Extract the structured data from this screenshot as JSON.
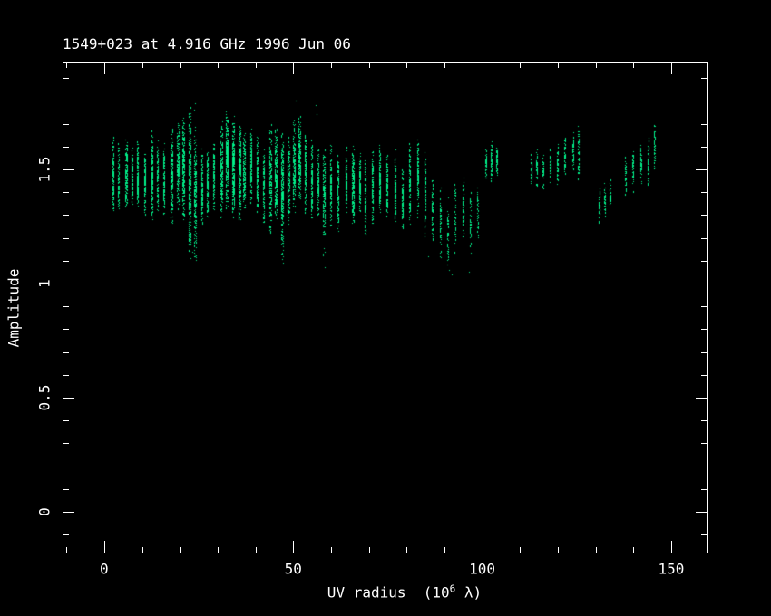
{
  "title": "1549+023 at 4.916 GHz 1996 Jun 06",
  "chart_data": {
    "type": "scatter",
    "title": "1549+023 at 4.916 GHz 1996 Jun 06",
    "xlabel_prefix": "UV radius  (10",
    "xlabel_sup": "6",
    "xlabel_suffix": " λ)",
    "ylabel": "Amplitude",
    "xlim": [
      -11.0,
      159.6
    ],
    "ylim": [
      -0.182,
      1.972
    ],
    "x_ticks_major": {
      "values": [
        0,
        50,
        100,
        150
      ],
      "labels": [
        "0",
        "50",
        "100",
        "150"
      ]
    },
    "x_minor_step": 10,
    "y_ticks_major": {
      "values": [
        0,
        0.5,
        1.0,
        1.5
      ],
      "labels": [
        "0",
        "0.5",
        "1",
        "1.5"
      ]
    },
    "y_minor_step": 0.1,
    "grid": false,
    "legend": false,
    "background": "#000000",
    "frame_color": "#ffffff",
    "point_color": "#00ee88",
    "series": [
      {
        "name": "visibility-amplitude",
        "streak_fields": [
          "uv_radius_1e6_lambda",
          "width",
          "amp_min",
          "amp_max",
          "n_points",
          "tail_amp_min_optional"
        ],
        "streaks": [
          [
            2.5,
            0.5,
            1.3,
            1.66,
            130
          ],
          [
            3.8,
            0.4,
            1.32,
            1.62,
            90
          ],
          [
            6.0,
            0.6,
            1.3,
            1.65,
            160
          ],
          [
            7.5,
            0.4,
            1.33,
            1.6,
            100
          ],
          [
            9.0,
            0.5,
            1.3,
            1.64,
            140
          ],
          [
            10.8,
            0.5,
            1.28,
            1.6,
            120
          ],
          [
            12.8,
            0.5,
            1.26,
            1.68,
            160
          ],
          [
            14.3,
            0.4,
            1.3,
            1.65,
            110
          ],
          [
            15.8,
            0.5,
            1.28,
            1.62,
            130
          ],
          [
            17.8,
            0.8,
            1.25,
            1.7,
            220
          ],
          [
            19.5,
            0.6,
            1.3,
            1.72,
            180
          ],
          [
            21.0,
            0.7,
            1.28,
            1.74,
            220
          ],
          [
            22.6,
            0.7,
            1.15,
            1.78,
            260,
            1.1
          ],
          [
            24.2,
            0.6,
            1.12,
            1.7,
            180,
            1.1
          ],
          [
            26.0,
            0.5,
            1.25,
            1.62,
            120
          ],
          [
            27.5,
            0.5,
            1.28,
            1.6,
            110
          ],
          [
            29.0,
            0.5,
            1.3,
            1.63,
            120
          ],
          [
            31.0,
            0.6,
            1.25,
            1.72,
            180
          ],
          [
            32.6,
            0.8,
            1.3,
            1.78,
            260
          ],
          [
            34.2,
            0.8,
            1.28,
            1.75,
            280
          ],
          [
            35.8,
            0.7,
            1.25,
            1.72,
            220
          ],
          [
            37.2,
            0.6,
            1.3,
            1.68,
            160
          ],
          [
            39.0,
            0.5,
            1.35,
            1.7,
            140
          ],
          [
            40.6,
            0.5,
            1.3,
            1.65,
            130
          ],
          [
            42.2,
            0.5,
            1.25,
            1.6,
            120
          ],
          [
            44.0,
            0.6,
            1.2,
            1.72,
            180
          ],
          [
            45.6,
            0.6,
            1.25,
            1.7,
            190
          ],
          [
            47.2,
            0.7,
            1.16,
            1.68,
            230,
            1.1
          ],
          [
            48.8,
            0.6,
            1.25,
            1.65,
            150
          ],
          [
            50.2,
            0.6,
            1.3,
            1.72,
            170
          ],
          [
            51.8,
            0.6,
            1.35,
            1.76,
            180
          ],
          [
            53.2,
            0.5,
            1.3,
            1.68,
            140
          ],
          [
            55.0,
            0.5,
            1.25,
            1.65,
            130
          ],
          [
            56.6,
            0.5,
            1.28,
            1.62,
            120
          ],
          [
            58.2,
            0.6,
            1.2,
            1.6,
            150,
            1.08
          ],
          [
            60.0,
            0.5,
            1.25,
            1.62,
            130
          ],
          [
            62.0,
            0.5,
            1.22,
            1.58,
            110
          ],
          [
            64.0,
            0.5,
            1.3,
            1.6,
            110
          ],
          [
            66.0,
            0.7,
            1.25,
            1.62,
            180
          ],
          [
            67.6,
            0.5,
            1.28,
            1.58,
            120
          ],
          [
            69.2,
            0.5,
            1.2,
            1.55,
            110
          ],
          [
            71.0,
            0.5,
            1.25,
            1.6,
            120
          ],
          [
            73.0,
            0.5,
            1.3,
            1.62,
            120
          ],
          [
            75.0,
            0.5,
            1.28,
            1.58,
            110
          ],
          [
            77.0,
            0.5,
            1.25,
            1.6,
            110
          ],
          [
            79.0,
            0.5,
            1.2,
            1.55,
            100
          ],
          [
            81.0,
            0.5,
            1.25,
            1.63,
            110
          ],
          [
            83.0,
            0.5,
            1.28,
            1.66,
            110
          ],
          [
            85.0,
            0.5,
            1.2,
            1.6,
            90
          ],
          [
            87.0,
            0.5,
            1.15,
            1.5,
            60
          ],
          [
            89.0,
            0.5,
            1.1,
            1.45,
            50
          ],
          [
            91.0,
            0.5,
            1.05,
            1.4,
            45
          ],
          [
            93.0,
            0.4,
            1.12,
            1.45,
            40
          ],
          [
            95.0,
            0.4,
            1.18,
            1.48,
            45
          ],
          [
            97.0,
            0.4,
            1.1,
            1.42,
            40
          ],
          [
            98.8,
            0.4,
            1.16,
            1.45,
            40
          ],
          [
            101.0,
            0.4,
            1.44,
            1.6,
            50
          ],
          [
            102.6,
            0.4,
            1.42,
            1.63,
            55
          ],
          [
            104.0,
            0.4,
            1.45,
            1.62,
            50
          ],
          [
            113.0,
            0.4,
            1.4,
            1.58,
            40
          ],
          [
            114.6,
            0.4,
            1.42,
            1.6,
            45
          ],
          [
            116.2,
            0.4,
            1.4,
            1.58,
            40
          ],
          [
            118.0,
            0.4,
            1.44,
            1.6,
            45
          ],
          [
            120.0,
            0.4,
            1.42,
            1.62,
            45
          ],
          [
            122.0,
            0.4,
            1.45,
            1.65,
            45
          ],
          [
            124.0,
            0.4,
            1.48,
            1.68,
            50
          ],
          [
            125.6,
            0.4,
            1.45,
            1.7,
            50
          ],
          [
            131.0,
            0.4,
            1.25,
            1.44,
            35
          ],
          [
            132.6,
            0.4,
            1.28,
            1.45,
            35
          ],
          [
            134.0,
            0.4,
            1.3,
            1.47,
            30
          ],
          [
            138.0,
            0.4,
            1.38,
            1.56,
            40
          ],
          [
            140.0,
            0.4,
            1.4,
            1.6,
            45
          ],
          [
            142.0,
            0.4,
            1.42,
            1.62,
            45
          ],
          [
            144.0,
            0.4,
            1.4,
            1.65,
            45
          ],
          [
            145.6,
            0.4,
            1.45,
            1.72,
            50
          ]
        ],
        "extra_points": [
          [
            24.0,
            1.79
          ],
          [
            23.7,
            1.76
          ],
          [
            50.6,
            1.8
          ],
          [
            55.9,
            1.78
          ],
          [
            56.2,
            1.74
          ],
          [
            91.2,
            1.06
          ],
          [
            92.0,
            1.04
          ],
          [
            23.2,
            1.14
          ],
          [
            47.3,
            1.09
          ],
          [
            58.4,
            1.07
          ],
          [
            85.6,
            1.12
          ],
          [
            96.6,
            1.05
          ]
        ]
      }
    ]
  }
}
